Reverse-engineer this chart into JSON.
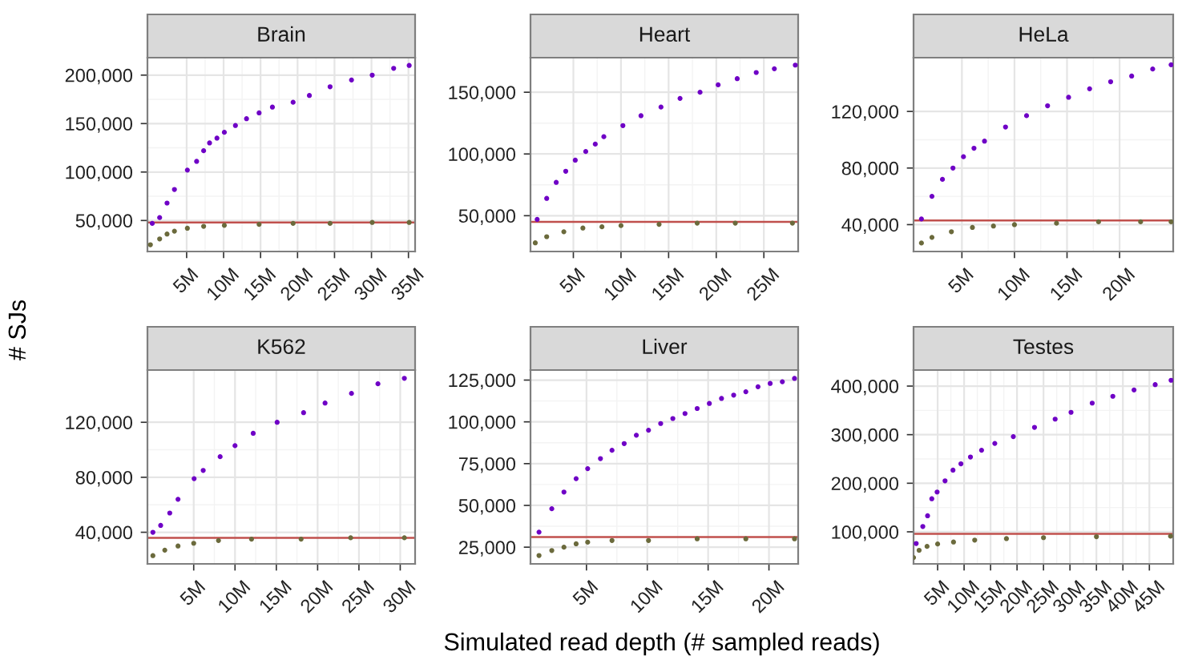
{
  "chart_data": [
    {
      "type": "scatter",
      "title": "Brain",
      "ylabel": "# SJs",
      "grid": true,
      "marker": "circle",
      "xlim": [
        -0.3,
        35.9
      ],
      "ylim": [
        18000,
        218000
      ],
      "xticks": [
        {
          "value": 5,
          "label": "5M"
        },
        {
          "value": 10,
          "label": "10M"
        },
        {
          "value": 15,
          "label": "15M"
        },
        {
          "value": 20,
          "label": "20M"
        },
        {
          "value": 25,
          "label": "25M"
        },
        {
          "value": 30,
          "label": "30M"
        },
        {
          "value": 35,
          "label": "35M"
        }
      ],
      "yticks": [
        {
          "value": 50000,
          "label": "50,000"
        },
        {
          "value": 100000,
          "label": "100,000"
        },
        {
          "value": 150000,
          "label": "150,000"
        },
        {
          "value": 200000,
          "label": "200,000"
        }
      ],
      "series": [
        {
          "color": "#6f00c6",
          "x": [
            0.35,
            1.35,
            2.35,
            3.35,
            5.1,
            6.35,
            7.3,
            8.1,
            9.1,
            10.1,
            11.6,
            13.1,
            14.8,
            16.6,
            19.4,
            21.6,
            24.4,
            27.3,
            30.1,
            33,
            35.1
          ],
          "values": [
            47000,
            53000,
            68000,
            82000,
            102000,
            111000,
            122000,
            130000,
            135000,
            141000,
            148000,
            155000,
            161000,
            167000,
            172000,
            179000,
            188000,
            195000,
            200000,
            207000,
            210000
          ]
        },
        {
          "color": "#6b6a3c",
          "x": [
            0.1,
            1.35,
            2.35,
            3.35,
            5.1,
            7.3,
            10.1,
            14.8,
            19.4,
            24.4,
            30.1,
            35.1
          ],
          "values": [
            25000,
            31000,
            36000,
            39000,
            42000,
            44000,
            45000,
            46000,
            47000,
            47000,
            48000,
            48000
          ]
        }
      ],
      "ref_lines": [
        {
          "axis": "y",
          "value": 48000,
          "color": "#c0504d"
        }
      ]
    },
    {
      "type": "scatter",
      "title": "Heart",
      "grid": true,
      "marker": "circle",
      "xlim": [
        0.5,
        28.6
      ],
      "ylim": [
        21000,
        178000
      ],
      "xticks": [
        {
          "value": 5,
          "label": "5M"
        },
        {
          "value": 10,
          "label": "10M"
        },
        {
          "value": 15,
          "label": "15M"
        },
        {
          "value": 20,
          "label": "20M"
        },
        {
          "value": 25,
          "label": "25M"
        }
      ],
      "yticks": [
        {
          "value": 50000,
          "label": "50,000"
        },
        {
          "value": 100000,
          "label": "100,000"
        },
        {
          "value": 150000,
          "label": "150,000"
        }
      ],
      "series": [
        {
          "color": "#6f00c6",
          "x": [
            1.2,
            2.2,
            3.2,
            4.2,
            5.2,
            6.3,
            7.3,
            8.2,
            10.2,
            12.1,
            14.2,
            16.2,
            18.3,
            20.2,
            22.2,
            24.2,
            26.1,
            28.3
          ],
          "values": [
            47000,
            64000,
            77000,
            86000,
            95000,
            102000,
            108000,
            114000,
            123000,
            131000,
            138000,
            145000,
            150000,
            156000,
            161000,
            166000,
            169000,
            172000
          ]
        },
        {
          "color": "#6b6a3c",
          "x": [
            1.0,
            2.2,
            4.0,
            6.0,
            8.0,
            10.0,
            14.0,
            18.0,
            22.0,
            28.0
          ],
          "values": [
            28000,
            33000,
            37000,
            40000,
            41000,
            42000,
            43000,
            44000,
            44000,
            44000
          ]
        }
      ],
      "ref_lines": [
        {
          "axis": "y",
          "value": 45000,
          "color": "#c0504d"
        }
      ]
    },
    {
      "type": "scatter",
      "title": "HeLa",
      "grid": true,
      "marker": "circle",
      "xlim": [
        0.4,
        25.1
      ],
      "ylim": [
        21000,
        158000
      ],
      "xticks": [
        {
          "value": 5,
          "label": "5M"
        },
        {
          "value": 10,
          "label": "10M"
        },
        {
          "value": 15,
          "label": "15M"
        },
        {
          "value": 20,
          "label": "20M"
        }
      ],
      "yticks": [
        {
          "value": 40000,
          "label": "40,000"
        },
        {
          "value": 80000,
          "label": "80,000"
        },
        {
          "value": 120000,
          "label": "120,000"
        }
      ],
      "series": [
        {
          "color": "#6f00c6",
          "x": [
            1.15,
            2.15,
            3.15,
            4.15,
            5.15,
            6.15,
            7.15,
            9.15,
            11.15,
            13.15,
            15.15,
            17.15,
            19.15,
            21.15,
            23.15,
            24.9
          ],
          "values": [
            44000,
            60000,
            72000,
            80000,
            88000,
            94000,
            99000,
            109000,
            117000,
            124000,
            130000,
            136000,
            141000,
            145000,
            150000,
            153000
          ]
        },
        {
          "color": "#6b6a3c",
          "x": [
            1.15,
            2.15,
            4.0,
            6.0,
            8.0,
            10.0,
            14.0,
            18.0,
            22.0,
            24.9
          ],
          "values": [
            27000,
            31000,
            35000,
            38000,
            39000,
            40000,
            41000,
            42000,
            42000,
            42000
          ]
        }
      ],
      "ref_lines": [
        {
          "axis": "y",
          "value": 43000,
          "color": "#c0504d"
        }
      ]
    },
    {
      "type": "scatter",
      "title": "K562",
      "grid": true,
      "marker": "circle",
      "xlim": [
        -0.6,
        31.8
      ],
      "ylim": [
        17000,
        158000
      ],
      "xticks": [
        {
          "value": 5,
          "label": "5M"
        },
        {
          "value": 10,
          "label": "10M"
        },
        {
          "value": 15,
          "label": "15M"
        },
        {
          "value": 20,
          "label": "20M"
        },
        {
          "value": 25,
          "label": "25M"
        },
        {
          "value": 30,
          "label": "30M"
        }
      ],
      "yticks": [
        {
          "value": 40000,
          "label": "40,000"
        },
        {
          "value": 80000,
          "label": "80,000"
        },
        {
          "value": 120000,
          "label": "120,000"
        }
      ],
      "series": [
        {
          "color": "#6f00c6",
          "x": [
            0.06,
            1.0,
            2.1,
            3.1,
            5.05,
            6.15,
            8.2,
            10.0,
            12.2,
            15.1,
            18.3,
            20.9,
            24.1,
            27.3,
            30.5
          ],
          "values": [
            40000,
            45000,
            54000,
            64000,
            79000,
            85000,
            95000,
            103000,
            112000,
            120000,
            127000,
            134000,
            141000,
            148000,
            152000
          ]
        },
        {
          "color": "#6b6a3c",
          "x": [
            0.06,
            1.5,
            3.1,
            5.0,
            8.0,
            12.0,
            18.0,
            24.0,
            30.5
          ],
          "values": [
            23000,
            27000,
            30000,
            32000,
            34000,
            35000,
            35000,
            36000,
            36000
          ]
        }
      ],
      "ref_lines": [
        {
          "axis": "y",
          "value": 36000,
          "color": "#c0504d"
        }
      ]
    },
    {
      "type": "scatter",
      "title": "Liver",
      "xlabel": "Simulated read depth (# sampled reads)",
      "grid": true,
      "marker": "circle",
      "xlim": [
        0.4,
        22.4
      ],
      "ylim": [
        15000,
        131000
      ],
      "xticks": [
        {
          "value": 5,
          "label": "5M"
        },
        {
          "value": 10,
          "label": "10M"
        },
        {
          "value": 15,
          "label": "15M"
        },
        {
          "value": 20,
          "label": "20M"
        }
      ],
      "yticks": [
        {
          "value": 25000,
          "label": "25,000"
        },
        {
          "value": 50000,
          "label": "50,000"
        },
        {
          "value": 75000,
          "label": "75,000"
        },
        {
          "value": 100000,
          "label": "100,000"
        },
        {
          "value": 125000,
          "label": "125,000"
        }
      ],
      "series": [
        {
          "color": "#6f00c6",
          "x": [
            1.1,
            2.15,
            3.15,
            4.15,
            5.1,
            6.15,
            7.1,
            8.1,
            9.1,
            10.1,
            11.1,
            12.1,
            13.1,
            14.1,
            15.1,
            16.1,
            17.1,
            18.1,
            19.1,
            20.1,
            21.1,
            22.1
          ],
          "values": [
            34000,
            48000,
            58000,
            66000,
            72000,
            78000,
            83000,
            87000,
            92000,
            95000,
            99000,
            102000,
            105000,
            108000,
            111000,
            114000,
            116000,
            118000,
            121000,
            123000,
            124000,
            126000
          ]
        },
        {
          "color": "#6b6a3c",
          "x": [
            1.1,
            2.15,
            3.15,
            4.15,
            5.1,
            7.1,
            10.1,
            14.1,
            18.1,
            22.1
          ],
          "values": [
            20000,
            23000,
            25000,
            27000,
            28000,
            29000,
            29000,
            30000,
            30000,
            30000
          ]
        }
      ],
      "ref_lines": [
        {
          "axis": "y",
          "value": 31000,
          "color": "#c0504d"
        }
      ]
    },
    {
      "type": "scatter",
      "title": "Testes",
      "grid": true,
      "marker": "circle",
      "xlim": [
        0.45,
        49.5
      ],
      "ylim": [
        34000,
        433000
      ],
      "xticks": [
        {
          "value": 5,
          "label": "5M"
        },
        {
          "value": 10,
          "label": "10M"
        },
        {
          "value": 15,
          "label": "15M"
        },
        {
          "value": 20,
          "label": "20M"
        },
        {
          "value": 25,
          "label": "25M"
        },
        {
          "value": 30,
          "label": "30M"
        },
        {
          "value": 35,
          "label": "35M"
        },
        {
          "value": 40,
          "label": "40M"
        },
        {
          "value": 45,
          "label": "45M"
        }
      ],
      "yticks": [
        {
          "value": 100000,
          "label": "100,000"
        },
        {
          "value": 200000,
          "label": "200,000"
        },
        {
          "value": 300000,
          "label": "300,000"
        },
        {
          "value": 400000,
          "label": "400,000"
        }
      ],
      "series": [
        {
          "color": "#6f00c6",
          "x": [
            0.95,
            2.2,
            3.1,
            3.9,
            4.9,
            6.4,
            7.9,
            9.4,
            11.2,
            13.3,
            15.8,
            19.3,
            23.3,
            27.2,
            30.2,
            34.2,
            38.1,
            42.1,
            46.1,
            49.1
          ],
          "values": [
            76000,
            111000,
            133000,
            168000,
            182000,
            205000,
            227000,
            240000,
            254000,
            268000,
            282000,
            296000,
            315000,
            332000,
            346000,
            365000,
            379000,
            392000,
            403000,
            412000
          ]
        },
        {
          "color": "#6b6a3c",
          "x": [
            0.45,
            1.5,
            3.0,
            5.0,
            8.0,
            12.0,
            18.0,
            25.0,
            35.0,
            49.0
          ],
          "values": [
            47000,
            62000,
            70000,
            75000,
            79000,
            83000,
            86000,
            88000,
            90000,
            91000
          ]
        }
      ],
      "ref_lines": [
        {
          "axis": "y",
          "value": 96000,
          "color": "#c0504d"
        }
      ]
    }
  ]
}
